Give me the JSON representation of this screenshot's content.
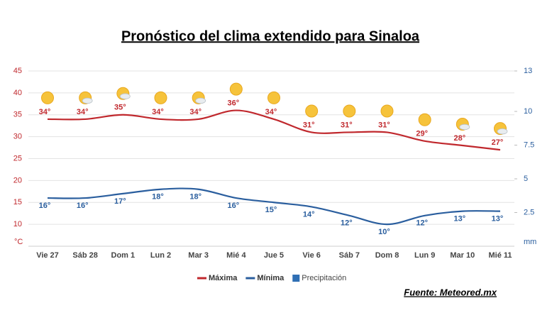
{
  "chart_data": {
    "type": "line",
    "title": "Pronóstico del clima extendido para Sinaloa",
    "source": "Fuente: Meteored.mx",
    "y_unit": "°C",
    "y2_unit": "mm",
    "categories": [
      "Vie 27",
      "Sáb 28",
      "Dom 1",
      "Lun 2",
      "Mar 3",
      "Mié 4",
      "Jue 5",
      "Vie 6",
      "Sáb 7",
      "Dom 8",
      "Lun 9",
      "Mar 10",
      "Mié 11"
    ],
    "series": [
      {
        "name": "Máxima",
        "color": "#c0282d",
        "values": [
          34,
          34,
          35,
          34,
          34,
          36,
          34,
          31,
          31,
          31,
          29,
          28,
          27
        ],
        "value_labels": [
          "34°",
          "34°",
          "35°",
          "34°",
          "34°",
          "36°",
          "34°",
          "31°",
          "31°",
          "31°",
          "29°",
          "28°",
          "27°"
        ]
      },
      {
        "name": "Mínima",
        "color": "#2a5e9e",
        "values": [
          16,
          16,
          17,
          18,
          18,
          16,
          15,
          14,
          12,
          10,
          12,
          13,
          13
        ],
        "value_labels": [
          "16°",
          "16°",
          "17°",
          "18°",
          "18°",
          "16°",
          "15°",
          "14°",
          "12°",
          "10°",
          "12°",
          "13°",
          "13°"
        ]
      },
      {
        "name": "Precipitación",
        "color": "#2f6fb4",
        "axis": "y2",
        "values": [
          null,
          null,
          null,
          null,
          null,
          null,
          null,
          null,
          null,
          null,
          null,
          null,
          null
        ]
      }
    ],
    "ylim": [
      5,
      45
    ],
    "yticks": [
      10,
      15,
      20,
      25,
      30,
      35,
      40,
      45
    ],
    "y2lim": [
      0,
      13
    ],
    "y2ticks": [
      2.5,
      5,
      7.5,
      10,
      13
    ],
    "grid": true
  }
}
